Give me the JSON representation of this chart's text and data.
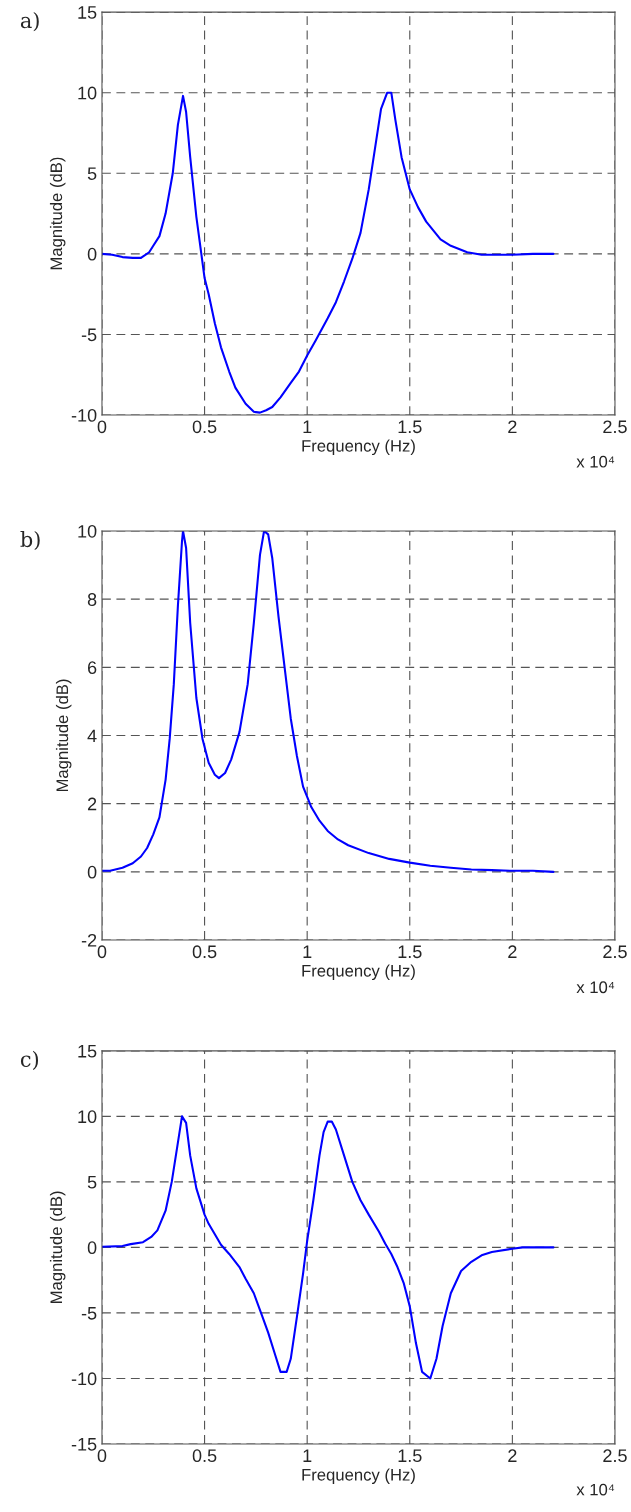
{
  "chart_data": [
    {
      "type": "line",
      "title": "a)",
      "xlabel": "Frequency (Hz)",
      "ylabel": "Magnitude (dB)",
      "annotations": [
        "x 10⁴"
      ],
      "xlim": [
        0,
        2.5
      ],
      "ylim": [
        -10,
        15
      ],
      "xticks": [
        0,
        0.5,
        1,
        1.5,
        2,
        2.5
      ],
      "yticks": [
        -10,
        -5,
        0,
        5,
        10,
        15
      ],
      "grid": true,
      "line_style": "solid",
      "marker": "none",
      "series": [
        {
          "color": "#0000ff",
          "x": [
            0,
            0.05,
            0.1,
            0.15,
            0.19,
            0.23,
            0.25,
            0.28,
            0.31,
            0.345,
            0.37,
            0.395,
            0.41,
            0.43,
            0.46,
            0.5,
            0.52,
            0.55,
            0.58,
            0.62,
            0.65,
            0.7,
            0.74,
            0.77,
            0.8,
            0.83,
            0.87,
            0.92,
            0.96,
            1.0,
            1.04,
            1.1,
            1.14,
            1.18,
            1.22,
            1.26,
            1.3,
            1.33,
            1.36,
            1.39,
            1.41,
            1.43,
            1.46,
            1.5,
            1.54,
            1.58,
            1.65,
            1.7,
            1.78,
            1.85,
            2.0,
            2.1,
            2.2
          ],
          "values": [
            0,
            -0.05,
            -0.2,
            -0.25,
            -0.25,
            0.1,
            0.5,
            1.1,
            2.5,
            5,
            8,
            9.8,
            8.8,
            6,
            2.3,
            -1.5,
            -2.5,
            -4.3,
            -5.8,
            -7.3,
            -8.3,
            -9.3,
            -9.8,
            -9.85,
            -9.7,
            -9.5,
            -8.9,
            -8,
            -7.3,
            -6.3,
            -5.4,
            -4,
            -3,
            -1.7,
            -0.3,
            1.3,
            4,
            6.5,
            9,
            10,
            10,
            8.3,
            6,
            4,
            2.9,
            2,
            0.9,
            0.5,
            0.1,
            -0.05,
            -0.05,
            0,
            0
          ]
        }
      ]
    },
    {
      "type": "line",
      "title": "b)",
      "xlabel": "Frequency (Hz)",
      "ylabel": "Magnitude (dB)",
      "annotations": [
        "x 10⁴"
      ],
      "xlim": [
        0,
        2.5
      ],
      "ylim": [
        -2,
        10
      ],
      "xticks": [
        0,
        0.5,
        1,
        1.5,
        2,
        2.5
      ],
      "yticks": [
        -2,
        0,
        2,
        4,
        6,
        8,
        10
      ],
      "grid": true,
      "line_style": "solid",
      "marker": "none",
      "series": [
        {
          "color": "#0000ff",
          "x": [
            0,
            0.04,
            0.1,
            0.15,
            0.19,
            0.22,
            0.25,
            0.28,
            0.31,
            0.33,
            0.35,
            0.37,
            0.39,
            0.395,
            0.41,
            0.43,
            0.46,
            0.49,
            0.52,
            0.55,
            0.57,
            0.6,
            0.63,
            0.67,
            0.71,
            0.74,
            0.77,
            0.79,
            0.81,
            0.83,
            0.86,
            0.89,
            0.92,
            0.95,
            0.98,
            1.02,
            1.06,
            1.1,
            1.15,
            1.2,
            1.3,
            1.4,
            1.5,
            1.6,
            1.7,
            1.8,
            1.9,
            2.0,
            2.1,
            2.2
          ],
          "values": [
            0.03,
            0.03,
            0.12,
            0.25,
            0.45,
            0.7,
            1.1,
            1.6,
            2.7,
            3.9,
            5.5,
            7.8,
            9.7,
            10,
            9.5,
            7.3,
            5.1,
            3.9,
            3.2,
            2.85,
            2.75,
            2.9,
            3.3,
            4.1,
            5.5,
            7.3,
            9.3,
            10,
            9.9,
            9.2,
            7.5,
            6,
            4.5,
            3.4,
            2.5,
            1.9,
            1.5,
            1.2,
            0.95,
            0.78,
            0.55,
            0.38,
            0.27,
            0.18,
            0.12,
            0.07,
            0.05,
            0.03,
            0.03,
            0
          ]
        }
      ]
    },
    {
      "type": "line",
      "title": "c)",
      "xlabel": "Frequency (Hz)",
      "ylabel": "Magnitude (dB)",
      "annotations": [
        "x 10⁴"
      ],
      "xlim": [
        0,
        2.5
      ],
      "ylim": [
        -15,
        15
      ],
      "xticks": [
        0,
        0.5,
        1,
        1.5,
        2,
        2.5
      ],
      "yticks": [
        -15,
        -10,
        -5,
        0,
        5,
        10,
        15
      ],
      "grid": true,
      "line_style": "solid",
      "marker": "none",
      "series": [
        {
          "color": "#0000ff",
          "x": [
            0,
            0.1,
            0.14,
            0.2,
            0.24,
            0.27,
            0.31,
            0.34,
            0.37,
            0.39,
            0.41,
            0.43,
            0.46,
            0.5,
            0.52,
            0.55,
            0.58,
            0.62,
            0.67,
            0.7,
            0.74,
            0.78,
            0.81,
            0.84,
            0.87,
            0.9,
            0.92,
            0.95,
            0.98,
            1.0,
            1.03,
            1.06,
            1.08,
            1.1,
            1.12,
            1.14,
            1.18,
            1.22,
            1.26,
            1.3,
            1.35,
            1.38,
            1.41,
            1.44,
            1.47,
            1.5,
            1.53,
            1.56,
            1.6,
            1.63,
            1.66,
            1.7,
            1.75,
            1.8,
            1.85,
            1.9,
            2.0,
            2.05,
            2.2
          ],
          "values": [
            0.05,
            0.1,
            0.25,
            0.4,
            0.8,
            1.3,
            2.8,
            5,
            8,
            10,
            9.5,
            7,
            4.5,
            2.5,
            1.8,
            1,
            0.2,
            -0.5,
            -1.5,
            -2.4,
            -3.5,
            -5.2,
            -6.5,
            -8,
            -9.5,
            -9.5,
            -8.5,
            -5.3,
            -2,
            0.5,
            3.6,
            7,
            8.8,
            9.6,
            9.6,
            9,
            7,
            5,
            3.6,
            2.5,
            1.2,
            0.3,
            -0.5,
            -1.5,
            -2.7,
            -4.5,
            -7.3,
            -9.5,
            -10,
            -8.5,
            -6,
            -3.5,
            -1.8,
            -1.1,
            -0.6,
            -0.35,
            -0.1,
            0,
            0
          ]
        }
      ]
    }
  ]
}
